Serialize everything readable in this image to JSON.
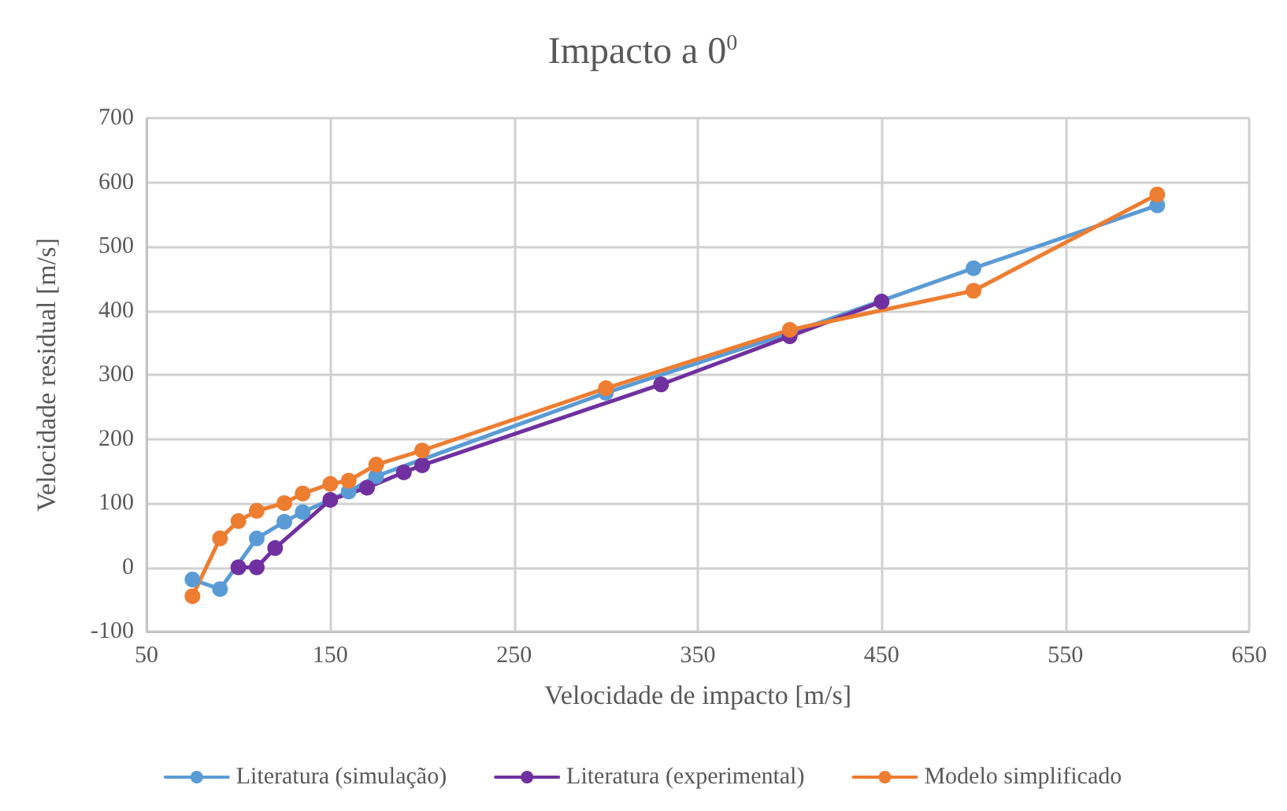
{
  "chart_data": {
    "type": "line",
    "title": "Impacto a 0$^{0}$",
    "xlabel": "Velocidade de impacto [m/s]",
    "ylabel": "Velocidade residual [m/s]",
    "xlim": [
      50,
      650
    ],
    "xticks": [
      50,
      150,
      250,
      350,
      450,
      550,
      650
    ],
    "ylim": [
      -100,
      700
    ],
    "yticks": [
      -100,
      0,
      100,
      200,
      300,
      400,
      500,
      600,
      700
    ],
    "grid": true,
    "legend": "bottom",
    "marker": "circle",
    "line_style": "solid",
    "series": [
      {
        "name": "Literatura (simulação)",
        "color": "#5b9bd5",
        "x": [
          75,
          90,
          110,
          125,
          135,
          150,
          160,
          175,
          200,
          300,
          400,
          450,
          500,
          600
        ],
        "values": [
          -19,
          -34,
          45,
          71,
          86,
          null,
          118,
          142,
          null,
          272,
          365,
          null,
          466,
          564
        ]
      },
      {
        "name": "Literatura (experimental)",
        "color": "#7030a0",
        "x": [
          100,
          110,
          120,
          150,
          170,
          190,
          200,
          330,
          400,
          450
        ],
        "values": [
          0,
          0,
          30,
          105,
          124,
          148,
          159,
          285,
          360,
          414
        ]
      },
      {
        "name": "Modelo simplificado",
        "color": "#ed7d31",
        "x": [
          75,
          90,
          100,
          110,
          125,
          135,
          150,
          160,
          175,
          200,
          300,
          400,
          500,
          600
        ],
        "values": [
          -45,
          45,
          72,
          88,
          100,
          115,
          130,
          135,
          160,
          182,
          279,
          370,
          431,
          581
        ]
      }
    ]
  }
}
